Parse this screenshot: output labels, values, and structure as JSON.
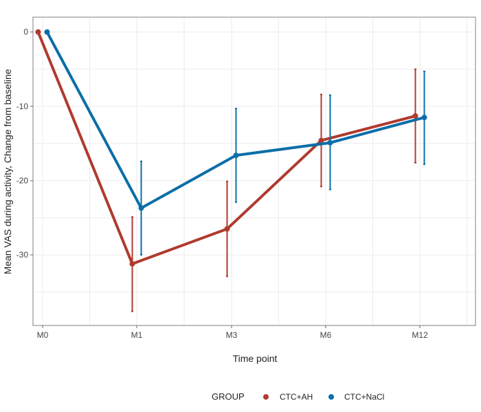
{
  "chart_data": {
    "type": "line",
    "title": "",
    "xlabel": "Time point",
    "ylabel": "Mean VAS during activity, Change from baseline",
    "categories": [
      "M0",
      "M1",
      "M3",
      "M6",
      "M12"
    ],
    "x_ticks": [
      "M0",
      "M1",
      "M3",
      "M6",
      "M12"
    ],
    "y_ticks": [
      0,
      -10,
      -20,
      -30
    ],
    "ylim": [
      -39.5,
      2
    ],
    "grid": true,
    "legend": {
      "title": "GROUP",
      "placement": "bottom-center"
    },
    "series": [
      {
        "name": "CTC+AH",
        "color": "#b03a2e",
        "values": [
          0,
          -31.2,
          -26.5,
          -14.6,
          -11.3
        ],
        "error_low": [
          0,
          -37.6,
          -32.9,
          -20.8,
          -17.6
        ],
        "error_high": [
          0,
          -24.9,
          -20.1,
          -8.4,
          -5.0
        ]
      },
      {
        "name": "CTC+NaCl",
        "color": "#0a6ea8",
        "values": [
          0,
          -23.7,
          -16.6,
          -14.9,
          -11.5
        ],
        "error_low": [
          0,
          -30.0,
          -22.9,
          -21.2,
          -17.8
        ],
        "error_high": [
          0,
          -17.4,
          -10.3,
          -8.5,
          -5.3
        ]
      }
    ]
  }
}
